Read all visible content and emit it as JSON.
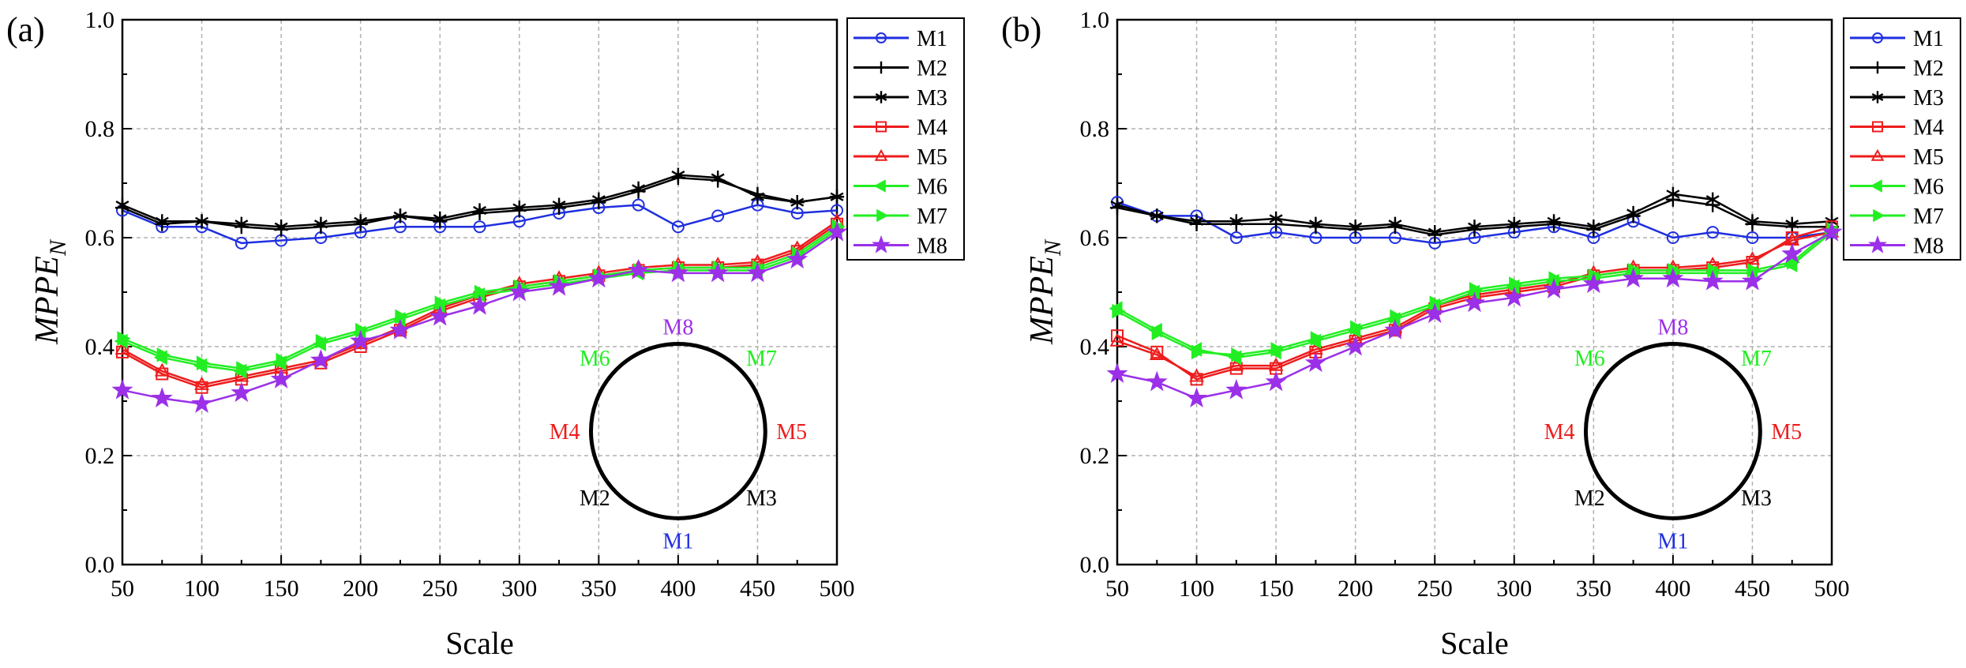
{
  "panel_labels": [
    "(a)",
    "(b)"
  ],
  "colors": {
    "M1": "#1f2fe0",
    "M2": "#000000",
    "M3": "#000000",
    "M4": "#ee1c1c",
    "M5": "#ee1c1c",
    "M6": "#22ee22",
    "M7": "#22ee22",
    "M8": "#9b30e8"
  },
  "chart_data": [
    {
      "type": "line",
      "panel": "(a)",
      "xlabel": "Scale",
      "ylabel": "MPPE",
      "ylabel_sub": "N",
      "xlim": [
        50,
        500
      ],
      "ylim": [
        0.0,
        1.0
      ],
      "xticks": [
        50,
        100,
        150,
        200,
        250,
        300,
        350,
        400,
        450,
        500
      ],
      "yticks": [
        0.0,
        0.2,
        0.4,
        0.6,
        0.8,
        1.0
      ],
      "ytick_labels": [
        "0.0",
        "0.2",
        "0.4",
        "0.6",
        "0.8",
        "1.0"
      ],
      "grid": true,
      "legend": "right",
      "x": [
        50,
        75,
        100,
        125,
        150,
        175,
        200,
        225,
        250,
        275,
        300,
        325,
        350,
        375,
        400,
        425,
        450,
        475,
        500
      ],
      "series": [
        {
          "name": "M1",
          "marker": "circle",
          "values": [
            0.65,
            0.62,
            0.62,
            0.59,
            0.595,
            0.6,
            0.61,
            0.62,
            0.62,
            0.62,
            0.63,
            0.645,
            0.655,
            0.66,
            0.62,
            0.64,
            0.66,
            0.645,
            0.65
          ]
        },
        {
          "name": "M2",
          "marker": "plus",
          "values": [
            0.655,
            0.625,
            0.63,
            0.62,
            0.615,
            0.62,
            0.625,
            0.64,
            0.63,
            0.645,
            0.65,
            0.655,
            0.665,
            0.685,
            0.71,
            0.705,
            0.68,
            0.665,
            0.675
          ]
        },
        {
          "name": "M3",
          "marker": "star6",
          "values": [
            0.66,
            0.63,
            0.63,
            0.625,
            0.62,
            0.625,
            0.63,
            0.64,
            0.635,
            0.65,
            0.655,
            0.66,
            0.67,
            0.69,
            0.715,
            0.71,
            0.675,
            0.665,
            0.675
          ]
        },
        {
          "name": "M4",
          "marker": "square",
          "values": [
            0.39,
            0.35,
            0.325,
            0.34,
            0.355,
            0.37,
            0.4,
            0.43,
            0.465,
            0.49,
            0.51,
            0.52,
            0.53,
            0.54,
            0.545,
            0.545,
            0.55,
            0.575,
            0.625
          ]
        },
        {
          "name": "M5",
          "marker": "triangle-up",
          "values": [
            0.395,
            0.355,
            0.33,
            0.345,
            0.36,
            0.375,
            0.405,
            0.435,
            0.47,
            0.495,
            0.515,
            0.525,
            0.535,
            0.545,
            0.55,
            0.55,
            0.555,
            0.58,
            0.63
          ]
        },
        {
          "name": "M6",
          "marker": "triangle-left",
          "values": [
            0.41,
            0.38,
            0.365,
            0.355,
            0.37,
            0.405,
            0.425,
            0.45,
            0.475,
            0.495,
            0.505,
            0.515,
            0.525,
            0.535,
            0.54,
            0.54,
            0.54,
            0.565,
            0.615
          ]
        },
        {
          "name": "M7",
          "marker": "triangle-right",
          "values": [
            0.415,
            0.385,
            0.37,
            0.36,
            0.375,
            0.41,
            0.43,
            0.455,
            0.48,
            0.5,
            0.51,
            0.52,
            0.53,
            0.54,
            0.545,
            0.545,
            0.545,
            0.57,
            0.62
          ]
        },
        {
          "name": "M8",
          "marker": "star5",
          "values": [
            0.32,
            0.305,
            0.295,
            0.315,
            0.34,
            0.375,
            0.41,
            0.43,
            0.455,
            0.475,
            0.5,
            0.51,
            0.525,
            0.54,
            0.535,
            0.535,
            0.535,
            0.56,
            0.61
          ]
        }
      ],
      "inset": {
        "labels": {
          "top": "M8",
          "upper_left": "M6",
          "upper_right": "M7",
          "left": "M4",
          "right": "M5",
          "lower_left": "M2",
          "lower_right": "M3",
          "bottom": "M1"
        }
      }
    },
    {
      "type": "line",
      "panel": "(b)",
      "xlabel": "Scale",
      "ylabel": "MPPE",
      "ylabel_sub": "N",
      "xlim": [
        50,
        500
      ],
      "ylim": [
        0.0,
        1.0
      ],
      "xticks": [
        50,
        100,
        150,
        200,
        250,
        300,
        350,
        400,
        450,
        500
      ],
      "yticks": [
        0.0,
        0.2,
        0.4,
        0.6,
        0.8,
        1.0
      ],
      "ytick_labels": [
        "0.0",
        "0.2",
        "0.4",
        "0.6",
        "0.8",
        "1.0"
      ],
      "grid": true,
      "legend": "right",
      "x": [
        50,
        75,
        100,
        125,
        150,
        175,
        200,
        225,
        250,
        275,
        300,
        325,
        350,
        375,
        400,
        425,
        450,
        475,
        500
      ],
      "series": [
        {
          "name": "M1",
          "marker": "circle",
          "values": [
            0.665,
            0.64,
            0.64,
            0.6,
            0.61,
            0.6,
            0.6,
            0.6,
            0.59,
            0.6,
            0.61,
            0.62,
            0.6,
            0.63,
            0.6,
            0.61,
            0.6,
            0.6,
            0.61
          ]
        },
        {
          "name": "M2",
          "marker": "plus",
          "values": [
            0.655,
            0.64,
            0.625,
            0.625,
            0.625,
            0.62,
            0.615,
            0.62,
            0.605,
            0.615,
            0.62,
            0.625,
            0.615,
            0.64,
            0.67,
            0.66,
            0.625,
            0.62,
            0.62
          ]
        },
        {
          "name": "M3",
          "marker": "star6",
          "values": [
            0.66,
            0.64,
            0.63,
            0.63,
            0.635,
            0.625,
            0.62,
            0.625,
            0.61,
            0.62,
            0.625,
            0.63,
            0.62,
            0.645,
            0.68,
            0.67,
            0.63,
            0.625,
            0.63
          ]
        },
        {
          "name": "M4",
          "marker": "square",
          "values": [
            0.42,
            0.39,
            0.34,
            0.36,
            0.36,
            0.39,
            0.41,
            0.43,
            0.47,
            0.49,
            0.5,
            0.51,
            0.53,
            0.54,
            0.54,
            0.545,
            0.555,
            0.6,
            0.62
          ]
        },
        {
          "name": "M5",
          "marker": "triangle-up",
          "values": [
            0.41,
            0.385,
            0.345,
            0.365,
            0.365,
            0.395,
            0.415,
            0.435,
            0.475,
            0.495,
            0.505,
            0.515,
            0.535,
            0.545,
            0.545,
            0.55,
            0.56,
            0.595,
            0.61
          ]
        },
        {
          "name": "M6",
          "marker": "triangle-left",
          "values": [
            0.47,
            0.43,
            0.395,
            0.38,
            0.39,
            0.41,
            0.43,
            0.45,
            0.475,
            0.5,
            0.51,
            0.52,
            0.525,
            0.535,
            0.535,
            0.535,
            0.535,
            0.55,
            0.61
          ]
        },
        {
          "name": "M7",
          "marker": "triangle-right",
          "values": [
            0.465,
            0.425,
            0.39,
            0.385,
            0.395,
            0.415,
            0.435,
            0.455,
            0.48,
            0.505,
            0.515,
            0.525,
            0.53,
            0.54,
            0.54,
            0.54,
            0.54,
            0.555,
            0.615
          ]
        },
        {
          "name": "M8",
          "marker": "star5",
          "values": [
            0.35,
            0.335,
            0.305,
            0.32,
            0.335,
            0.37,
            0.4,
            0.43,
            0.46,
            0.48,
            0.49,
            0.505,
            0.515,
            0.525,
            0.525,
            0.52,
            0.52,
            0.57,
            0.61
          ]
        }
      ],
      "inset": {
        "labels": {
          "top": "M8",
          "upper_left": "M6",
          "upper_right": "M7",
          "left": "M4",
          "right": "M5",
          "lower_left": "M2",
          "lower_right": "M3",
          "bottom": "M1"
        }
      }
    }
  ]
}
